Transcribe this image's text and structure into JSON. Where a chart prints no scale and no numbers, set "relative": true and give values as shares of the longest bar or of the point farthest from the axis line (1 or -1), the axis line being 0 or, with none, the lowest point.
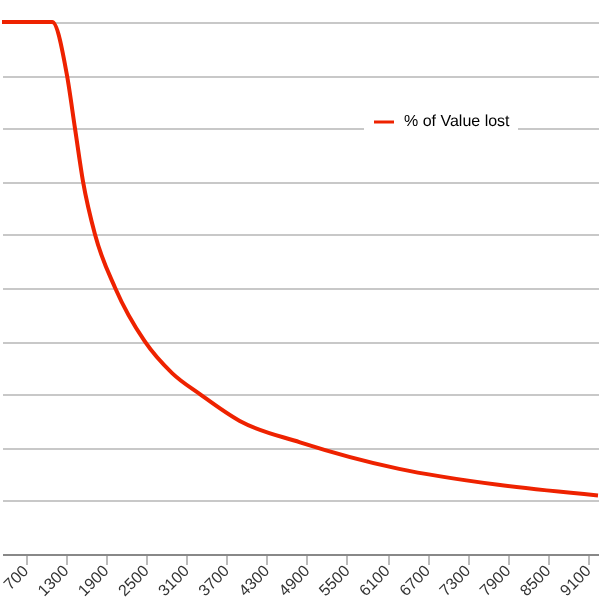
{
  "chart_data": {
    "type": "line",
    "relative": true,
    "x": [
      350,
      1100,
      1320,
      1440,
      1560,
      1740,
      2040,
      2480,
      2890,
      3310,
      3900,
      4800,
      6280,
      7760,
      9250
    ],
    "series": [
      {
        "name": "% of Value lost",
        "color": "#ee2200",
        "values": [
          1,
          1,
          0.9,
          0.8,
          0.7,
          0.6,
          0.5,
          0.4,
          0.34,
          0.3,
          0.25,
          0.21,
          0.16,
          0.13,
          0.11
        ]
      }
    ],
    "xlim": [
      350,
      9250
    ],
    "xticks": [
      700,
      1300,
      1900,
      2500,
      3100,
      3700,
      4300,
      4900,
      5500,
      6100,
      6700,
      7300,
      7900,
      8500,
      9100
    ],
    "grid": "y",
    "legend": "top right",
    "tick_labels": "x",
    "marker": "none",
    "line_style": "solid"
  }
}
